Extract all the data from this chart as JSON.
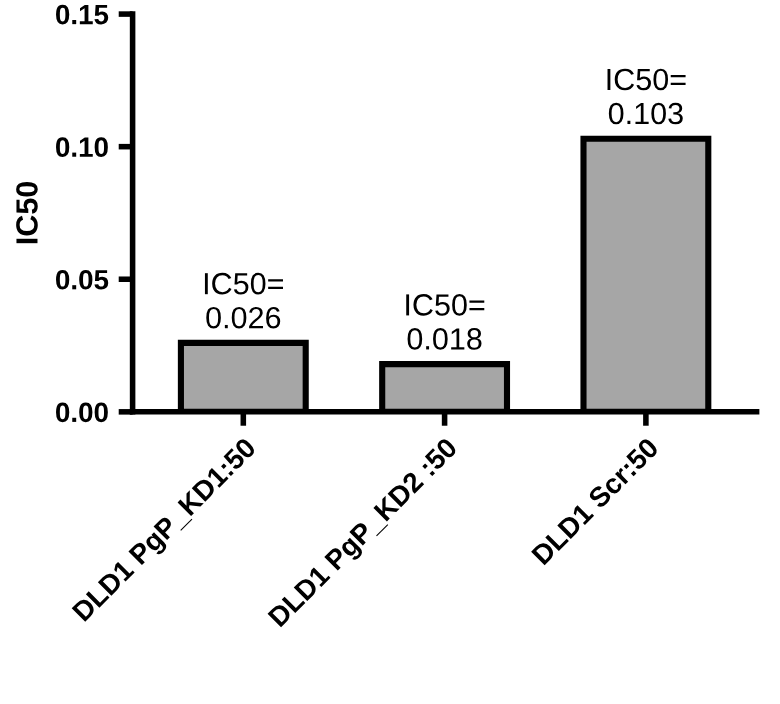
{
  "chart_data": {
    "type": "bar",
    "ylabel": "IC50",
    "categories": [
      "DLD1 PgP_KD1:50",
      "DLD1 PgP_KD2 :50",
      "DLD1 Scr:50"
    ],
    "values": [
      0.026,
      0.018,
      0.103
    ],
    "value_labels": [
      "IC50=\n0.026",
      "IC50=\n0.018",
      "IC50=\n0.103"
    ],
    "color": "#a6a6a6",
    "ylim": [
      0,
      0.15
    ],
    "yticks": [
      {
        "value": 0,
        "label": "0.00"
      },
      {
        "value": 0.05,
        "label": "0.05"
      },
      {
        "value": 0.1,
        "label": "0.10"
      },
      {
        "value": 0.15,
        "label": "0.15"
      }
    ],
    "grid": false
  }
}
